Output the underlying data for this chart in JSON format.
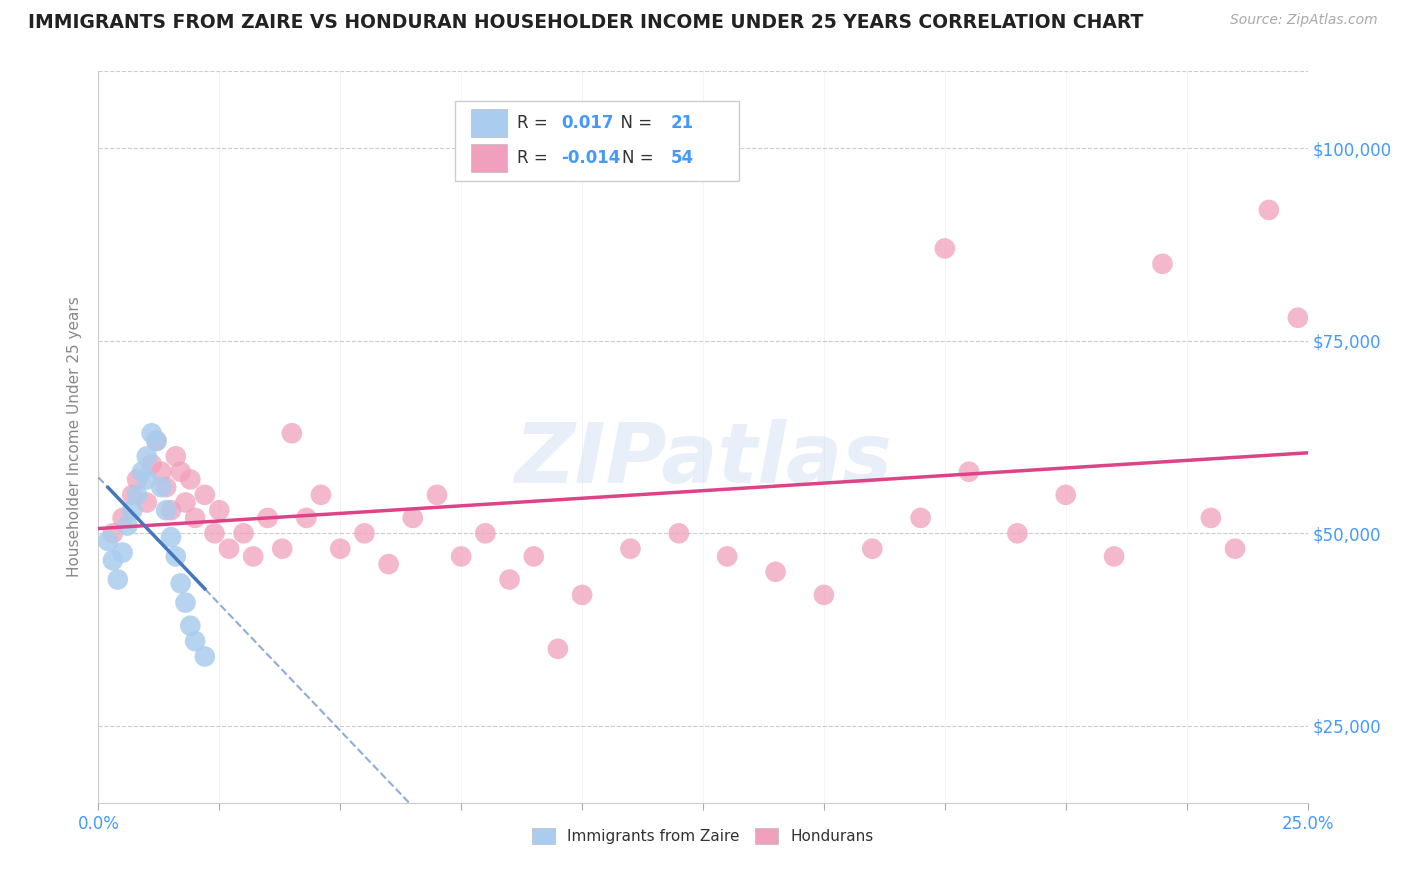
{
  "title": "IMMIGRANTS FROM ZAIRE VS HONDURAN HOUSEHOLDER INCOME UNDER 25 YEARS CORRELATION CHART",
  "source_text": "Source: ZipAtlas.com",
  "ylabel": "Householder Income Under 25 years",
  "xlim": [
    0.0,
    0.25
  ],
  "ylim": [
    15000,
    110000
  ],
  "ytick_values": [
    25000,
    50000,
    75000,
    100000
  ],
  "ytick_labels": [
    "$25,000",
    "$50,000",
    "$75,000",
    "$100,000"
  ],
  "background_color": "#ffffff",
  "grid_color": "#cccccc",
  "watermark_text": "ZIPatlas",
  "legend_R1": "0.017",
  "legend_N1": "21",
  "legend_R2": "-0.014",
  "legend_N2": "54",
  "zaire_color": "#aaccee",
  "honduran_color": "#f0a0bc",
  "zaire_line_color": "#4477bb",
  "honduran_line_color": "#dd4488",
  "title_color": "#222222",
  "axis_label_color": "#888888",
  "blue_label_color": "#4499ff",
  "xtick_label_color": "#4499ff",
  "zaire_x": [
    0.002,
    0.003,
    0.004,
    0.005,
    0.006,
    0.007,
    0.008,
    0.009,
    0.01,
    0.01,
    0.011,
    0.012,
    0.013,
    0.014,
    0.015,
    0.016,
    0.017,
    0.018,
    0.019,
    0.02,
    0.022
  ],
  "zaire_y": [
    49000,
    46500,
    44000,
    47500,
    51000,
    53000,
    55000,
    58000,
    60000,
    57000,
    63000,
    62000,
    56000,
    53000,
    49500,
    47000,
    43500,
    41000,
    38000,
    36000,
    34000
  ],
  "honduran_x": [
    0.003,
    0.005,
    0.007,
    0.008,
    0.01,
    0.011,
    0.012,
    0.013,
    0.014,
    0.015,
    0.016,
    0.017,
    0.018,
    0.019,
    0.02,
    0.022,
    0.024,
    0.025,
    0.027,
    0.03,
    0.032,
    0.035,
    0.038,
    0.04,
    0.043,
    0.046,
    0.05,
    0.055,
    0.06,
    0.065,
    0.07,
    0.075,
    0.08,
    0.085,
    0.09,
    0.095,
    0.1,
    0.11,
    0.12,
    0.13,
    0.14,
    0.15,
    0.16,
    0.17,
    0.175,
    0.18,
    0.19,
    0.2,
    0.21,
    0.22,
    0.23,
    0.235,
    0.242,
    0.248
  ],
  "honduran_y": [
    50000,
    52000,
    55000,
    57000,
    54000,
    59000,
    62000,
    58000,
    56000,
    53000,
    60000,
    58000,
    54000,
    57000,
    52000,
    55000,
    50000,
    53000,
    48000,
    50000,
    47000,
    52000,
    48000,
    63000,
    52000,
    55000,
    48000,
    50000,
    46000,
    52000,
    55000,
    47000,
    50000,
    44000,
    47000,
    35000,
    42000,
    48000,
    50000,
    47000,
    45000,
    42000,
    48000,
    52000,
    87000,
    58000,
    50000,
    55000,
    47000,
    85000,
    52000,
    48000,
    92000,
    78000
  ]
}
